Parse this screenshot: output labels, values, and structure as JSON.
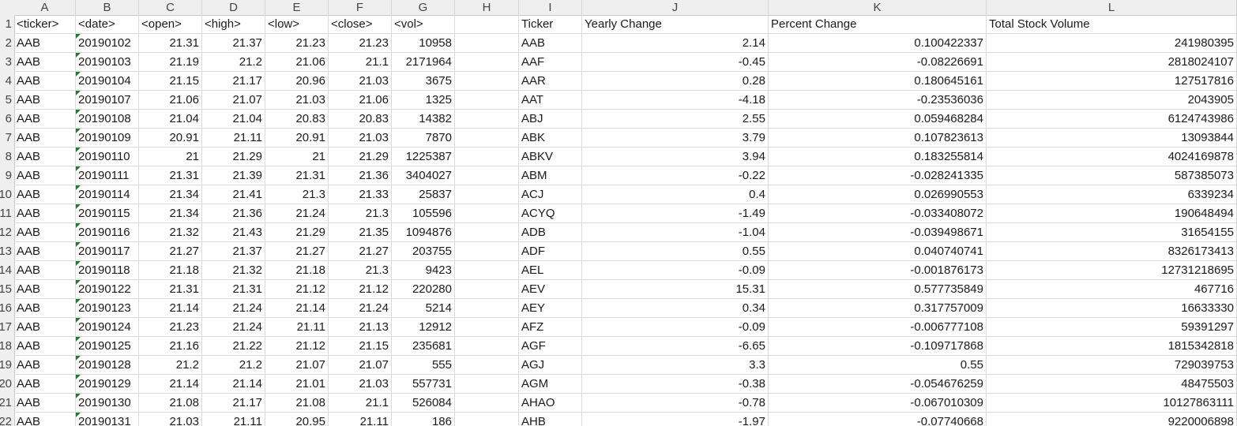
{
  "columns": [
    "A",
    "B",
    "C",
    "D",
    "E",
    "F",
    "G",
    "H",
    "I",
    "J",
    "K",
    "L"
  ],
  "row_numbers": [
    "1",
    "2",
    "3",
    "4",
    "5",
    "6",
    "7",
    "8",
    "9",
    "10",
    "11",
    "12",
    "13",
    "14",
    "15",
    "16",
    "17",
    "18",
    "19",
    "20",
    "21",
    "22"
  ],
  "header_row": {
    "A": "<ticker>",
    "B": "<date>",
    "C": "<open>",
    "D": "<high>",
    "E": "<low>",
    "F": "<close>",
    "G": "<vol>",
    "H": "",
    "I": "Ticker",
    "J": "Yearly Change",
    "K": "Percent Change",
    "L": "Total Stock Volume"
  },
  "data_rows": [
    {
      "A": "AAB",
      "B": "20190102",
      "C": "21.31",
      "D": "21.37",
      "E": "21.23",
      "F": "21.23",
      "G": "10958",
      "H": "",
      "I": "AAB",
      "J": "2.14",
      "K": "0.100422337",
      "L": "241980395"
    },
    {
      "A": "AAB",
      "B": "20190103",
      "C": "21.19",
      "D": "21.2",
      "E": "21.06",
      "F": "21.1",
      "G": "2171964",
      "H": "",
      "I": "AAF",
      "J": "-0.45",
      "K": "-0.08226691",
      "L": "2818024107"
    },
    {
      "A": "AAB",
      "B": "20190104",
      "C": "21.15",
      "D": "21.17",
      "E": "20.96",
      "F": "21.03",
      "G": "3675",
      "H": "",
      "I": "AAR",
      "J": "0.28",
      "K": "0.180645161",
      "L": "127517816"
    },
    {
      "A": "AAB",
      "B": "20190107",
      "C": "21.06",
      "D": "21.07",
      "E": "21.03",
      "F": "21.06",
      "G": "1325",
      "H": "",
      "I": "AAT",
      "J": "-4.18",
      "K": "-0.23536036",
      "L": "2043905"
    },
    {
      "A": "AAB",
      "B": "20190108",
      "C": "21.04",
      "D": "21.04",
      "E": "20.83",
      "F": "20.83",
      "G": "14382",
      "H": "",
      "I": "ABJ",
      "J": "2.55",
      "K": "0.059468284",
      "L": "6124743986"
    },
    {
      "A": "AAB",
      "B": "20190109",
      "C": "20.91",
      "D": "21.11",
      "E": "20.91",
      "F": "21.03",
      "G": "7870",
      "H": "",
      "I": "ABK",
      "J": "3.79",
      "K": "0.107823613",
      "L": "13093844"
    },
    {
      "A": "AAB",
      "B": "20190110",
      "C": "21",
      "D": "21.29",
      "E": "21",
      "F": "21.29",
      "G": "1225387",
      "H": "",
      "I": "ABKV",
      "J": "3.94",
      "K": "0.183255814",
      "L": "4024169878"
    },
    {
      "A": "AAB",
      "B": "20190111",
      "C": "21.31",
      "D": "21.39",
      "E": "21.31",
      "F": "21.36",
      "G": "3404027",
      "H": "",
      "I": "ABM",
      "J": "-0.22",
      "K": "-0.028241335",
      "L": "587385073"
    },
    {
      "A": "AAB",
      "B": "20190114",
      "C": "21.34",
      "D": "21.41",
      "E": "21.3",
      "F": "21.33",
      "G": "25837",
      "H": "",
      "I": "ACJ",
      "J": "0.4",
      "K": "0.026990553",
      "L": "6339234"
    },
    {
      "A": "AAB",
      "B": "20190115",
      "C": "21.34",
      "D": "21.36",
      "E": "21.24",
      "F": "21.3",
      "G": "105596",
      "H": "",
      "I": "ACYQ",
      "J": "-1.49",
      "K": "-0.033408072",
      "L": "190648494"
    },
    {
      "A": "AAB",
      "B": "20190116",
      "C": "21.32",
      "D": "21.43",
      "E": "21.29",
      "F": "21.35",
      "G": "1094876",
      "H": "",
      "I": "ADB",
      "J": "-1.04",
      "K": "-0.039498671",
      "L": "31654155"
    },
    {
      "A": "AAB",
      "B": "20190117",
      "C": "21.27",
      "D": "21.37",
      "E": "21.27",
      "F": "21.27",
      "G": "203755",
      "H": "",
      "I": "ADF",
      "J": "0.55",
      "K": "0.040740741",
      "L": "8326173413"
    },
    {
      "A": "AAB",
      "B": "20190118",
      "C": "21.18",
      "D": "21.32",
      "E": "21.18",
      "F": "21.3",
      "G": "9423",
      "H": "",
      "I": "AEL",
      "J": "-0.09",
      "K": "-0.001876173",
      "L": "12731218695"
    },
    {
      "A": "AAB",
      "B": "20190122",
      "C": "21.31",
      "D": "21.31",
      "E": "21.12",
      "F": "21.12",
      "G": "220280",
      "H": "",
      "I": "AEV",
      "J": "15.31",
      "K": "0.577735849",
      "L": "467716"
    },
    {
      "A": "AAB",
      "B": "20190123",
      "C": "21.14",
      "D": "21.24",
      "E": "21.14",
      "F": "21.24",
      "G": "5214",
      "H": "",
      "I": "AEY",
      "J": "0.34",
      "K": "0.317757009",
      "L": "16633330"
    },
    {
      "A": "AAB",
      "B": "20190124",
      "C": "21.23",
      "D": "21.24",
      "E": "21.11",
      "F": "21.13",
      "G": "12912",
      "H": "",
      "I": "AFZ",
      "J": "-0.09",
      "K": "-0.006777108",
      "L": "59391297"
    },
    {
      "A": "AAB",
      "B": "20190125",
      "C": "21.16",
      "D": "21.22",
      "E": "21.12",
      "F": "21.15",
      "G": "235681",
      "H": "",
      "I": "AGF",
      "J": "-6.65",
      "K": "-0.109717868",
      "L": "1815342818"
    },
    {
      "A": "AAB",
      "B": "20190128",
      "C": "21.2",
      "D": "21.2",
      "E": "21.07",
      "F": "21.07",
      "G": "555",
      "H": "",
      "I": "AGJ",
      "J": "3.3",
      "K": "0.55",
      "L": "729039753"
    },
    {
      "A": "AAB",
      "B": "20190129",
      "C": "21.14",
      "D": "21.14",
      "E": "21.01",
      "F": "21.03",
      "G": "557731",
      "H": "",
      "I": "AGM",
      "J": "-0.38",
      "K": "-0.054676259",
      "L": "48475503"
    },
    {
      "A": "AAB",
      "B": "20190130",
      "C": "21.08",
      "D": "21.17",
      "E": "21.08",
      "F": "21.1",
      "G": "526084",
      "H": "",
      "I": "AHAO",
      "J": "-0.78",
      "K": "-0.067010309",
      "L": "10127863111"
    },
    {
      "A": "AAB",
      "B": "20190131",
      "C": "21.03",
      "D": "21.11",
      "E": "20.95",
      "F": "21.11",
      "G": "186",
      "H": "",
      "I": "AHB",
      "J": "-1.97",
      "K": "-0.07740668",
      "L": "9220006898"
    }
  ]
}
